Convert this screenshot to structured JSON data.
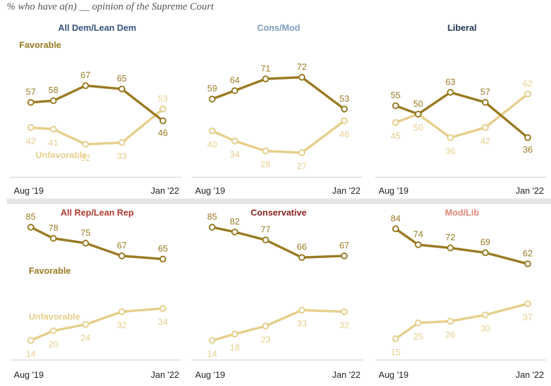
{
  "subtitle": "% who have a(n) __ opinion of the Supreme Court",
  "colors": {
    "favorable": "#9a7a22",
    "unfavorable": "#e6cf8c",
    "axis": "#cccccc",
    "tick": "#222222"
  },
  "chart_data": [
    {
      "type": "line",
      "title": "All Dem/Lean Dem",
      "title_color": "#34527a",
      "x": [
        "Aug '19",
        "",
        "",
        "",
        "Jan '22"
      ],
      "x_tick_labels": [
        "Aug '19",
        "Jan '22"
      ],
      "series_labels": {
        "favorable": "Favorable",
        "unfavorable": "Unfavorable"
      },
      "series": [
        {
          "name": "Favorable",
          "values": [
            57,
            58,
            67,
            65,
            46
          ]
        },
        {
          "name": "Unfavorable",
          "values": [
            42,
            41,
            32,
            33,
            53
          ]
        }
      ]
    },
    {
      "type": "line",
      "title": "Cons/Mod",
      "title_color": "#7d9bc0",
      "x": [
        "Aug '19",
        "",
        "",
        "",
        "Jan '22"
      ],
      "x_tick_labels": [
        "Aug '19",
        "Jan '22"
      ],
      "series": [
        {
          "values": [
            59,
            64,
            71,
            72,
            53
          ]
        },
        {
          "values": [
            40,
            34,
            28,
            27,
            46
          ]
        }
      ]
    },
    {
      "type": "line",
      "title": "Liberal",
      "title_color": "#1e3250",
      "x": [
        "Aug '19",
        "",
        "",
        "",
        "Jan '22"
      ],
      "x_tick_labels": [
        "Aug '19",
        "Jan '22"
      ],
      "series": [
        {
          "values": [
            55,
            50,
            63,
            57,
            36
          ]
        },
        {
          "values": [
            45,
            50,
            36,
            42,
            62
          ]
        }
      ]
    },
    {
      "type": "line",
      "title": "All Rep/Lean Rep",
      "title_color": "#b03a32",
      "x": [
        "Aug '19",
        "",
        "",
        "",
        "Jan '22"
      ],
      "x_tick_labels": [
        "Aug '19",
        "Jan '22"
      ],
      "series_labels": {
        "favorable": "Favorable",
        "unfavorable": "Unfavorable"
      },
      "series": [
        {
          "name": "Favorable",
          "values": [
            85,
            78,
            75,
            67,
            65
          ]
        },
        {
          "name": "Unfavorable",
          "values": [
            14,
            20,
            24,
            32,
            34
          ]
        }
      ]
    },
    {
      "type": "line",
      "title": "Conservative",
      "title_color": "#8c2323",
      "x": [
        "Aug '19",
        "",
        "",
        "",
        "Jan '22"
      ],
      "x_tick_labels": [
        "Aug '19",
        "Jan '22"
      ],
      "series": [
        {
          "values": [
            85,
            82,
            77,
            66,
            67
          ]
        },
        {
          "values": [
            14,
            18,
            23,
            33,
            32
          ]
        }
      ]
    },
    {
      "type": "line",
      "title": "Mod/Lib",
      "title_color": "#e3857a",
      "x": [
        "Aug '19",
        "",
        "",
        "",
        "Jan '22"
      ],
      "x_tick_labels": [
        "Aug '19",
        "Jan '22"
      ],
      "series": [
        {
          "values": [
            84,
            74,
            72,
            69,
            62
          ]
        },
        {
          "values": [
            15,
            25,
            26,
            30,
            37
          ]
        }
      ]
    }
  ]
}
